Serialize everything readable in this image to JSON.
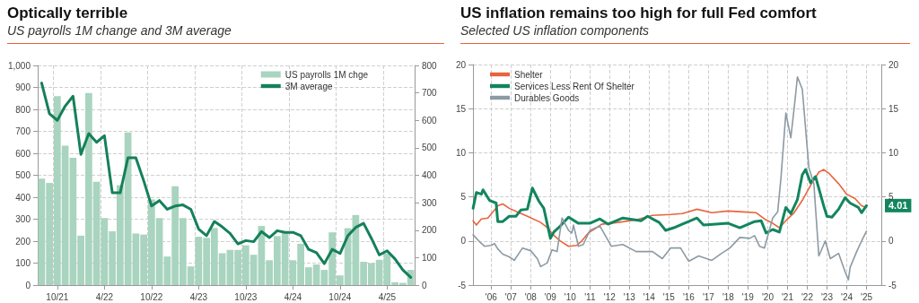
{
  "chart_data": [
    {
      "type": "bar",
      "title": "Optically terrible",
      "subtitle": "US payrolls 1M change and 3M average",
      "categories": [
        null,
        null,
        "10/21",
        null,
        null,
        null,
        null,
        null,
        "4/22",
        null,
        null,
        null,
        null,
        null,
        "10/22",
        null,
        null,
        null,
        null,
        null,
        "4/23",
        null,
        null,
        null,
        null,
        null,
        "10/23",
        null,
        null,
        null,
        null,
        null,
        "4/24",
        null,
        null,
        null,
        null,
        null,
        "10/24",
        null,
        null,
        null,
        null,
        null,
        "4/25",
        null,
        null,
        null
      ],
      "series": [
        {
          "name": "US payrolls 1M chge",
          "color": "#a9d4bf",
          "values": [
            485,
            465,
            860,
            635,
            580,
            225,
            875,
            470,
            305,
            245,
            455,
            695,
            235,
            230,
            390,
            305,
            130,
            450,
            305,
            85,
            220,
            215,
            260,
            145,
            160,
            160,
            181,
            138,
            269,
            113,
            223,
            238,
            113,
            188,
            81,
            94,
            69,
            240,
            44,
            259,
            319,
            106,
            100,
            115,
            144,
            13,
            10,
            69
          ]
        },
        {
          "name": "3M average",
          "type": "line",
          "axis": "y2",
          "color": "#15805a",
          "values": [
            736,
            624,
            600,
            652,
            688,
            476,
            552,
            520,
            544,
            336,
            336,
            464,
            464,
            380,
            288,
            308,
            276,
            288,
            292,
            276,
            204,
            180,
            232,
            212,
            188,
            150,
            162,
            158,
            195,
            173,
            198,
            192,
            192,
            180,
            130,
            118,
            78,
            130,
            115,
            180,
            210,
            225,
            170,
            110,
            125,
            95,
            55,
            28
          ]
        }
      ],
      "ylim": [
        0,
        1000
      ],
      "yticks": [
        0,
        100,
        200,
        300,
        400,
        500,
        600,
        700,
        800,
        900,
        {
          "value": 1000,
          "label": "1,000"
        }
      ],
      "y2lim": [
        0,
        800
      ],
      "y2ticks": [
        0,
        100,
        200,
        300,
        400,
        500,
        600,
        700,
        800
      ],
      "grid": true,
      "legend": "top right",
      "marker": "none"
    },
    {
      "type": "line",
      "title": "US inflation remains too high for full Fed comfort",
      "subtitle": "Selected US inflation components",
      "series": [
        {
          "name": "Shelter",
          "color": "#e8643c",
          "x": [
            "2005-08",
            "2005-10",
            "2006-01",
            "2006-05",
            "2006-09",
            "2006-11",
            "2007-02",
            "2007-06",
            "2007-12",
            "2008-05",
            "2009-01",
            "2009-06",
            "2009-08",
            "2010-01",
            "2010-06",
            "2010-11",
            "2011-02",
            "2011-06",
            "2011-11",
            "2012-02",
            "2012-12",
            "2013-11",
            "2014-09",
            "2015-08",
            "2016-03",
            "2016-12",
            "2017-09",
            "2018-07",
            "2019-04",
            "2019-12",
            "2020-05",
            "2020-10",
            "2021-02",
            "2021-06",
            "2021-11",
            "2022-04",
            "2022-09",
            "2023-02",
            "2023-05",
            "2023-08",
            "2024-02",
            "2024-07",
            "2024-12",
            "2025-04",
            "2025-07"
          ],
          "values": [
            2.3,
            1.8,
            2.5,
            2.6,
            3.5,
            4.0,
            4.2,
            3.7,
            3.2,
            2.8,
            2.1,
            1.4,
            0.8,
            0.0,
            -0.6,
            -0.5,
            0.0,
            0.9,
            1.5,
            1.9,
            2.1,
            2.4,
            2.9,
            3.0,
            3.1,
            3.6,
            3.2,
            3.4,
            3.3,
            3.2,
            2.5,
            2.0,
            1.5,
            2.3,
            3.2,
            4.6,
            6.3,
            7.8,
            8.1,
            7.7,
            6.5,
            5.3,
            4.8,
            4.0,
            3.8
          ]
        },
        {
          "name": "Services Less Rent Of Shelter",
          "color": "#12855e",
          "x": [
            "2005-08",
            "2005-10",
            "2006-01",
            "2006-02",
            "2006-06",
            "2006-10",
            "2006-11",
            "2007-02",
            "2007-06",
            "2007-10",
            "2008-01",
            "2008-05",
            "2008-08",
            "2008-12",
            "2009-03",
            "2009-07",
            "2009-09",
            "2010-01",
            "2010-06",
            "2010-12",
            "2011-07",
            "2012-01",
            "2012-06",
            "2013-03",
            "2014-02",
            "2014-06",
            "2015-01",
            "2015-05",
            "2015-10",
            "2016-03",
            "2016-12",
            "2017-04",
            "2018-07",
            "2019-02",
            "2019-11",
            "2020-03",
            "2020-06",
            "2020-10",
            "2021-02",
            "2021-06",
            "2021-09",
            "2022-01",
            "2022-04",
            "2022-06",
            "2022-09",
            "2022-12",
            "2023-05",
            "2023-07",
            "2023-10",
            "2024-02",
            "2024-06",
            "2024-09",
            "2025-02",
            "2025-04",
            "2025-07"
          ],
          "values": [
            3.7,
            5.5,
            5.3,
            5.8,
            4.6,
            4.3,
            2.2,
            2.2,
            2.8,
            2.8,
            3.5,
            3.6,
            6.0,
            4.5,
            3.7,
            0.3,
            1.0,
            1.7,
            2.7,
            2.0,
            2.0,
            2.5,
            1.9,
            2.6,
            2.3,
            2.8,
            2.1,
            1.2,
            1.5,
            1.9,
            2.6,
            1.8,
            2.0,
            1.5,
            2.2,
            2.3,
            0.9,
            1.3,
            1.0,
            3.8,
            3.1,
            4.7,
            7.5,
            8.1,
            6.6,
            7.3,
            4.0,
            2.8,
            2.7,
            3.6,
            4.9,
            4.3,
            3.8,
            3.2,
            4.0
          ]
        },
        {
          "name": "Durables Goods",
          "color": "#8c9aa4",
          "x": [
            "2005-08",
            "2005-12",
            "2006-03",
            "2006-07",
            "2006-09",
            "2006-11",
            "2007-02",
            "2007-06",
            "2007-09",
            "2008-02",
            "2008-07",
            "2008-11",
            "2009-01",
            "2009-05",
            "2009-08",
            "2009-11",
            "2010-02",
            "2010-06",
            "2010-08",
            "2010-09",
            "2010-12",
            "2011-03",
            "2011-07",
            "2012-01",
            "2012-08",
            "2013-03",
            "2013-11",
            "2014-09",
            "2015-03",
            "2015-08",
            "2016-02",
            "2016-07",
            "2017-01",
            "2017-09",
            "2018-03",
            "2018-08",
            "2019-02",
            "2019-08",
            "2019-11",
            "2020-02",
            "2020-05",
            "2020-10",
            "2021-01",
            "2021-03",
            "2021-06",
            "2021-09",
            "2021-11",
            "2022-01",
            "2022-04",
            "2022-08",
            "2022-11",
            "2023-02",
            "2023-06",
            "2023-09",
            "2024-02",
            "2024-06",
            "2024-08",
            "2024-09",
            "2025-01",
            "2025-04",
            "2025-07"
          ],
          "values": [
            0.7,
            -0.1,
            -0.6,
            -0.5,
            -0.3,
            -0.9,
            -1.5,
            -1.8,
            -2.2,
            -0.8,
            -1.1,
            -2.0,
            -2.9,
            -2.5,
            -1.0,
            -1.2,
            2.6,
            1.2,
            0.9,
            1.8,
            -0.6,
            -0.4,
            1.2,
            1.7,
            -0.6,
            -0.4,
            -1.2,
            -1.2,
            -2.0,
            -0.8,
            -0.8,
            -2.3,
            -1.7,
            -2.2,
            -1.4,
            -0.8,
            0.4,
            0.3,
            0.6,
            -0.6,
            -0.8,
            2.6,
            3.3,
            7.0,
            14.5,
            11.7,
            15.0,
            18.6,
            17.2,
            8.3,
            6.5,
            -1.7,
            0.0,
            -2.0,
            -1.4,
            -3.5,
            -4.4,
            -3.0,
            -1.2,
            0.0,
            1.1
          ]
        }
      ],
      "xlim": [
        "2005-08",
        "2026-04"
      ],
      "xticks": [
        {
          "value": "2006-07",
          "label": "'06"
        },
        {
          "value": "2007-07",
          "label": "'07"
        },
        {
          "value": "2008-07",
          "label": "'08"
        },
        {
          "value": "2009-07",
          "label": "'09"
        },
        {
          "value": "2010-07",
          "label": "'10"
        },
        {
          "value": "2011-07",
          "label": "'11"
        },
        {
          "value": "2012-07",
          "label": "'12"
        },
        {
          "value": "2013-07",
          "label": "'13"
        },
        {
          "value": "2014-07",
          "label": "'14"
        },
        {
          "value": "2015-07",
          "label": "'15"
        },
        {
          "value": "2016-07",
          "label": "'16"
        },
        {
          "value": "2017-07",
          "label": "'17"
        },
        {
          "value": "2018-07",
          "label": "'18"
        },
        {
          "value": "2019-07",
          "label": "'19"
        },
        {
          "value": "2020-07",
          "label": "'20"
        },
        {
          "value": "2021-07",
          "label": "'21"
        },
        {
          "value": "2022-07",
          "label": "'22"
        },
        {
          "value": "2023-07",
          "label": "'23"
        },
        {
          "value": "2024-07",
          "label": "'24"
        },
        {
          "value": "2025-07",
          "label": "'25"
        }
      ],
      "ylim": [
        -5,
        20
      ],
      "yticks": [
        -5,
        0,
        5,
        10,
        15,
        20
      ],
      "y2lim": [
        -5,
        20
      ],
      "y2ticks": [
        -5,
        0,
        5,
        10,
        15,
        20
      ],
      "annotations": [
        {
          "text": "4.01",
          "x": "2025-07",
          "y": 4.01
        }
      ],
      "grid": true,
      "legend": "top left",
      "marker": "none"
    }
  ]
}
